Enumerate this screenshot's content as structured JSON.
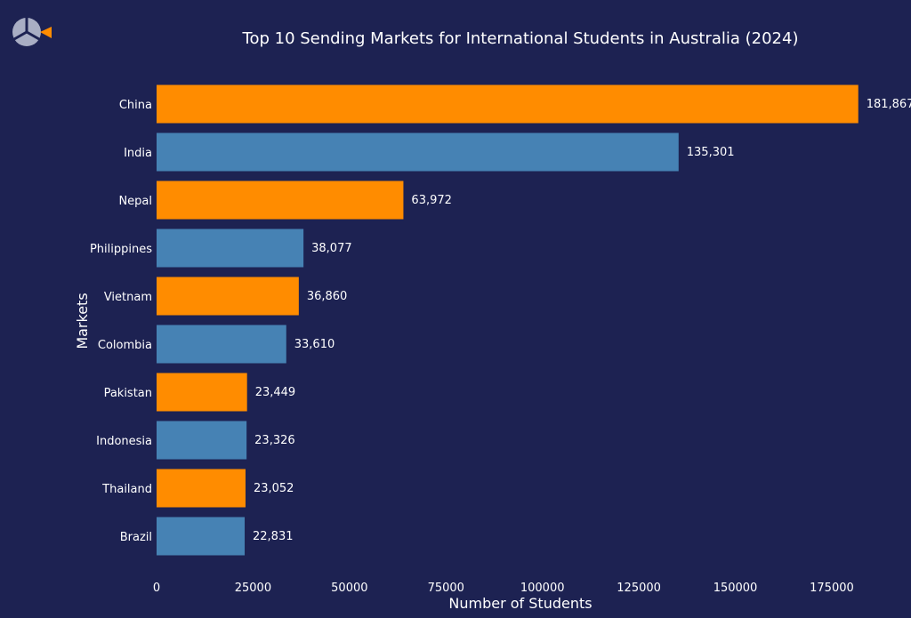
{
  "chart_data": {
    "type": "bar",
    "orientation": "horizontal",
    "title": "Top 10 Sending Markets for International Students in Australia (2024)",
    "xlabel": "Number of Students",
    "ylabel": "Markets",
    "categories": [
      "China",
      "India",
      "Nepal",
      "Philippines",
      "Vietnam",
      "Colombia",
      "Pakistan",
      "Indonesia",
      "Thailand",
      "Brazil"
    ],
    "values": [
      181867,
      135301,
      63972,
      38077,
      36860,
      33610,
      23449,
      23326,
      23052,
      22831
    ],
    "value_labels": [
      "181,867",
      "135,301",
      "63,972",
      "38,077",
      "36,860",
      "33,610",
      "23,449",
      "23,326",
      "23,052",
      "22,831"
    ],
    "xticks": [
      0,
      25000,
      50000,
      75000,
      100000,
      125000,
      150000,
      175000
    ],
    "xtick_labels": [
      "0",
      "25000",
      "50000",
      "75000",
      "100000",
      "125000",
      "150000",
      "175000"
    ],
    "xlim": [
      0,
      190000
    ],
    "grid": false,
    "bar_colors": [
      "#ff8c00",
      "#4682b4"
    ],
    "background": "#1d2252"
  },
  "logo": {
    "icon": "segmented-circle-logo-icon",
    "colors": [
      "#a9aec4",
      "#ff8c00"
    ]
  }
}
